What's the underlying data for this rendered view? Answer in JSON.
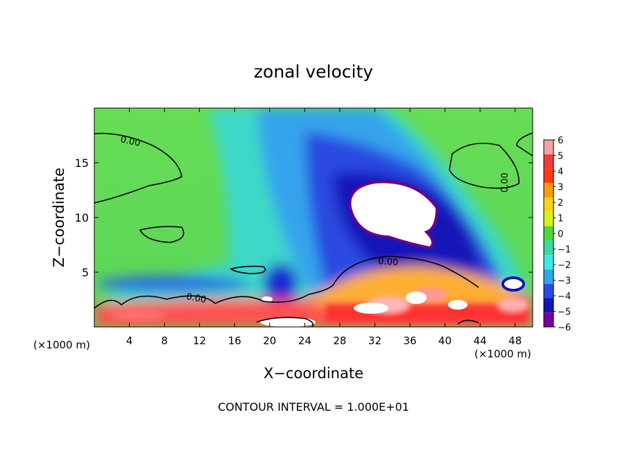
{
  "chart_data": {
    "type": "heatmap",
    "title": "zonal velocity",
    "xlabel": "X−coordinate",
    "ylabel": "Z−coordinate",
    "x_unit_left": "(×1000 m)",
    "x_unit_right": "(×1000 m)",
    "footer": "CONTOUR INTERVAL = 1.000E+01",
    "xlim": [
      0,
      50
    ],
    "ylim": [
      0,
      20
    ],
    "xticks": [
      4,
      8,
      12,
      16,
      20,
      24,
      28,
      32,
      36,
      40,
      44,
      48
    ],
    "yticks": [
      5,
      10,
      15
    ],
    "colorbar": {
      "ticks": [
        "6",
        "5",
        "4",
        "3",
        "2",
        "1",
        "0",
        "−1",
        "−2",
        "−3",
        "−4",
        "−5",
        "−6"
      ],
      "colors": [
        "#f3a4a4",
        "#f03c3c",
        "#ff3a14",
        "#ff9a10",
        "#ffd21a",
        "#d8f020",
        "#4cd83c",
        "#3cd89c",
        "#3ce8e8",
        "#36a4ec",
        "#2a4ae0",
        "#1414b8",
        "#7800a0"
      ]
    },
    "contour_labels": [
      "0.00",
      "0.00",
      "0.00",
      "0.00"
    ],
    "colors": {
      "background": "#66dd55",
      "negative_core": "#1a1ab8",
      "positive_core": "#ff2a2a"
    }
  }
}
